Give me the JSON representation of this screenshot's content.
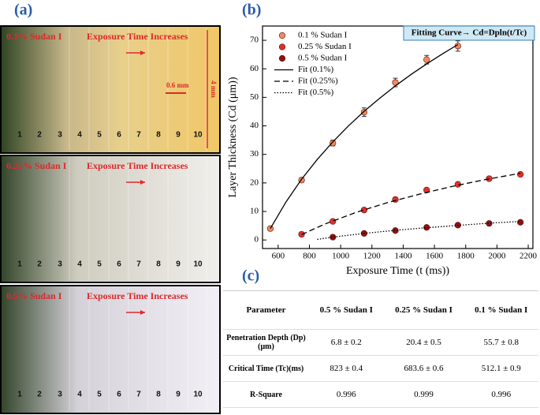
{
  "panel_a": {
    "panel_label": "(a)",
    "panels": [
      {
        "sample": "0.1% Sudan I",
        "caption": "Exposure Time Increases",
        "scale_bar": "0.6 mm",
        "height_bar": "4 mm",
        "strip_labels": [
          "1",
          "2",
          "3",
          "4",
          "5",
          "6",
          "7",
          "8",
          "9",
          "10"
        ]
      },
      {
        "sample": "0.25% Sudan I",
        "caption": "Exposure Time Increases",
        "strip_labels": [
          "1",
          "2",
          "3",
          "4",
          "5",
          "6",
          "7",
          "8",
          "9",
          "10"
        ]
      },
      {
        "sample": "0.5% Sudan I",
        "caption": "Exposure Time Increases",
        "strip_labels": [
          "1",
          "2",
          "3",
          "4",
          "5",
          "6",
          "7",
          "8",
          "9",
          "10"
        ]
      }
    ]
  },
  "chart_data": {
    "type": "scatter",
    "panel_label": "(b)",
    "x_label": "Exposure Time (t (ms))",
    "y_label": "Layer Thickness (Cd (μm))",
    "annotation": "Fitting Curve→ Cd=Dpln(t/Tc)",
    "xlim": [
      500,
      2230
    ],
    "ylim": [
      -3,
      75
    ],
    "xticks": [
      600,
      800,
      1000,
      1200,
      1400,
      1600,
      1800,
      2000,
      2200
    ],
    "yticks": [
      0,
      10,
      20,
      30,
      40,
      50,
      60,
      70
    ],
    "legend": "upper left",
    "series": [
      {
        "name": "0.1 % Sudan I",
        "type": "scatter",
        "color": "#f08a5d",
        "x": [
          550,
          750,
          950,
          1150,
          1350,
          1550,
          1750
        ],
        "values": [
          4,
          21,
          34,
          44.8,
          55.2,
          63.2,
          68
        ],
        "errors": [
          0.5,
          0.8,
          1,
          1.5,
          1.5,
          1.5,
          1.8
        ]
      },
      {
        "name": "0.25 % Sudan I",
        "type": "scatter",
        "color": "#e0302a",
        "x": [
          750,
          950,
          1150,
          1350,
          1550,
          1750,
          1950,
          2150
        ],
        "values": [
          2,
          6.5,
          10.5,
          14.2,
          17.5,
          19.5,
          21.5,
          23
        ]
      },
      {
        "name": "0.5 % Sudan I",
        "type": "scatter",
        "color": "#8e1212",
        "x": [
          950,
          1150,
          1350,
          1550,
          1750,
          1950,
          2150
        ],
        "values": [
          1,
          2.3,
          3.3,
          4.4,
          5.2,
          5.8,
          6.2
        ]
      },
      {
        "name": "Fit (0.1%)",
        "type": "line",
        "color": "#000000",
        "dash": "solid",
        "x": [
          550,
          650,
          750,
          850,
          950,
          1050,
          1150,
          1250,
          1350,
          1450,
          1550,
          1650,
          1750
        ],
        "values": [
          4.0,
          13.3,
          21.3,
          28.2,
          34.4,
          40.0,
          45.1,
          49.7,
          54.0,
          58.0,
          61.7,
          65.2,
          68.5
        ]
      },
      {
        "name": "Fit (0.25%)",
        "type": "line",
        "color": "#000000",
        "dash": "dashed",
        "x": [
          750,
          900,
          1100,
          1300,
          1500,
          1700,
          1900,
          2150
        ],
        "values": [
          1.9,
          5.6,
          9.7,
          13.1,
          16.0,
          18.6,
          20.9,
          23.4
        ]
      },
      {
        "name": "Fit (0.5%)",
        "type": "line",
        "color": "#000000",
        "dash": "dotted",
        "x": [
          850,
          950,
          1150,
          1350,
          1550,
          1750,
          1950,
          2150
        ],
        "values": [
          0.2,
          1.0,
          2.3,
          3.4,
          4.3,
          5.1,
          5.9,
          6.5
        ]
      }
    ]
  },
  "table": {
    "panel_label": "(c)",
    "header": [
      "Parameter",
      "0.5 % Sudan I",
      "0.25 % Sudan I",
      "0.1 % Sudan I"
    ],
    "rows": [
      [
        "Penetration Depth (Dp)(μm)",
        "6.8 ± 0.2",
        "20.4 ± 0.5",
        "55.7 ± 0.8"
      ],
      [
        "Critical Time (Tc)(ms)",
        "823 ± 0.4",
        "683.6 ± 0.6",
        "512.1 ± 0.9"
      ],
      [
        "R-Square",
        "0.996",
        "0.999",
        "0.996"
      ]
    ]
  }
}
